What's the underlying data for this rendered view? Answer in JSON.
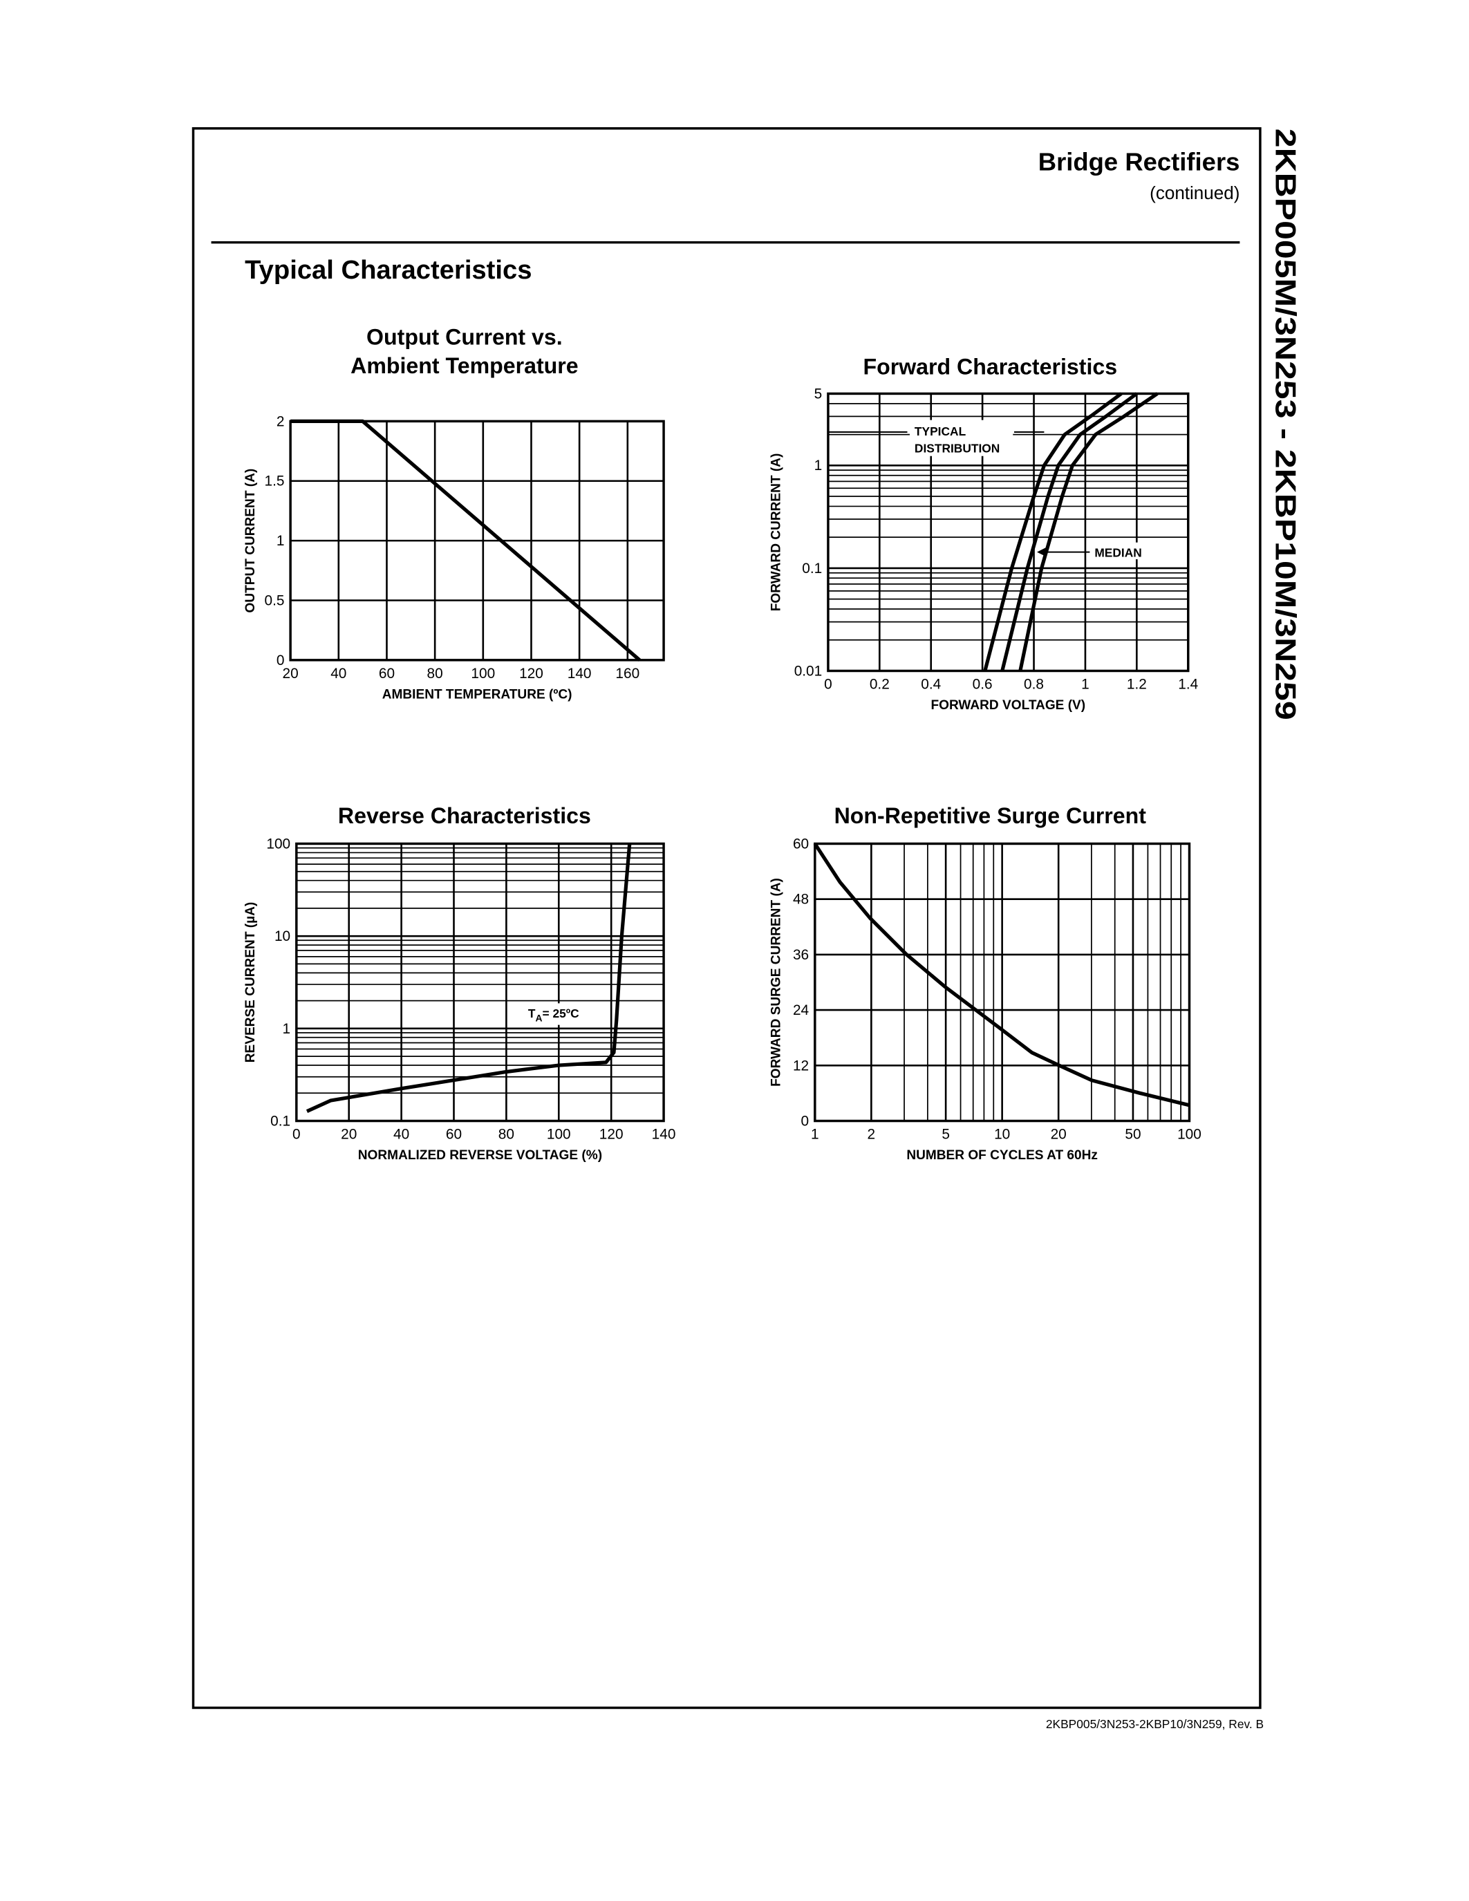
{
  "header": {
    "title": "Bridge Rectifiers",
    "subtitle": "(continued)"
  },
  "section_title": "Typical Characteristics",
  "side_title": "2KBP005M/3N253 - 2KBP10M/3N259",
  "footer": "2KBP005/3N253-2KBP10/3N259, Rev. B",
  "chart_data": [
    {
      "type": "line",
      "title": [
        "Output Current vs.",
        "Ambient Temperature"
      ],
      "x_label": "AMBIENT TEMPERATURE (ºC)",
      "y_label": "OUTPUT CURRENT (A)",
      "x": [
        20,
        50,
        165
      ],
      "series": [
        {
          "color": "#000000",
          "values": [
            2,
            2,
            0
          ]
        }
      ],
      "xlim": [
        20,
        175
      ],
      "xticks": [
        20,
        40,
        60,
        80,
        100,
        120,
        140,
        160
      ],
      "ylim": [
        0,
        2
      ],
      "yticks": [
        0,
        0.5,
        1,
        1.5,
        2
      ],
      "grid": true
    },
    {
      "type": "line",
      "title": [
        "Forward Characteristics"
      ],
      "x_label": "FORWARD VOLTAGE (V)",
      "y_label": "FORWARD CURRENT (A)",
      "series": [
        {
          "color": "#000000",
          "x": [
            0.61,
            0.714,
            0.8,
            0.84,
            0.92,
            1.02,
            1.14
          ],
          "values": [
            0.01,
            0.1,
            0.5,
            1,
            2,
            3,
            5
          ]
        },
        {
          "color": "#000000",
          "x": [
            0.677,
            0.775,
            0.855,
            0.895,
            0.98,
            1.08,
            1.2
          ],
          "values": [
            0.01,
            0.1,
            0.5,
            1,
            2,
            3,
            5
          ]
        },
        {
          "color": "#000000",
          "x": [
            0.747,
            0.83,
            0.91,
            0.95,
            1.04,
            1.15,
            1.28
          ],
          "values": [
            0.01,
            0.1,
            0.5,
            1,
            2,
            3,
            5
          ]
        }
      ],
      "annotations": [
        [
          "TYPICAL",
          "DISTRIBUTION"
        ],
        [
          "MEDIAN"
        ]
      ],
      "xlim": [
        0,
        1.4
      ],
      "xticks": [
        0,
        0.2,
        0.4,
        0.6,
        0.8,
        1,
        1.2,
        1.4
      ],
      "ylim": [
        0.01,
        5
      ],
      "yticks": [
        0.01,
        0.1,
        1,
        5
      ],
      "ylog": true,
      "grid": true
    },
    {
      "type": "line",
      "title": [
        "Reverse Characteristics"
      ],
      "x_label": "NORMALIZED REVERSE VOLTAGE (%)",
      "y_label": "REVERSE CURRENT (µA)",
      "series": [
        {
          "color": "#000000",
          "x": [
            4,
            13,
            40,
            80,
            100,
            118,
            121,
            122,
            124,
            127
          ],
          "values": [
            0.127,
            0.166,
            0.224,
            0.34,
            0.4,
            0.43,
            0.55,
            1.23,
            10,
            100
          ]
        }
      ],
      "annotations": [
        [
          "T",
          "A",
          "= 25ºC"
        ]
      ],
      "xlim": [
        0,
        140
      ],
      "xticks": [
        0,
        20,
        40,
        60,
        80,
        100,
        120,
        140
      ],
      "ylim": [
        0.1,
        100
      ],
      "yticks": [
        0.1,
        1,
        10,
        100
      ],
      "ylog": true,
      "grid": true
    },
    {
      "type": "line",
      "title": [
        "Non-Repetitive Surge Current"
      ],
      "x_label": "NUMBER OF CYCLES AT 60Hz",
      "y_label": "FORWARD SURGE CURRENT (A)",
      "series": [
        {
          "color": "#000000",
          "x": [
            1,
            1.36,
            1.97,
            3.07,
            4.93,
            10,
            14.4,
            19.7,
            30.1,
            54.6,
            100
          ],
          "values": [
            60,
            51.7,
            43.9,
            36.1,
            29.1,
            19.7,
            14.8,
            12.2,
            8.8,
            6.0,
            3.4
          ]
        }
      ],
      "xlim": [
        1,
        100
      ],
      "xticks": [
        1,
        2,
        5,
        10,
        20,
        50,
        100
      ],
      "xlog": true,
      "ylim": [
        0,
        60
      ],
      "yticks": [
        0,
        12,
        24,
        36,
        48,
        60
      ],
      "grid": true
    }
  ]
}
